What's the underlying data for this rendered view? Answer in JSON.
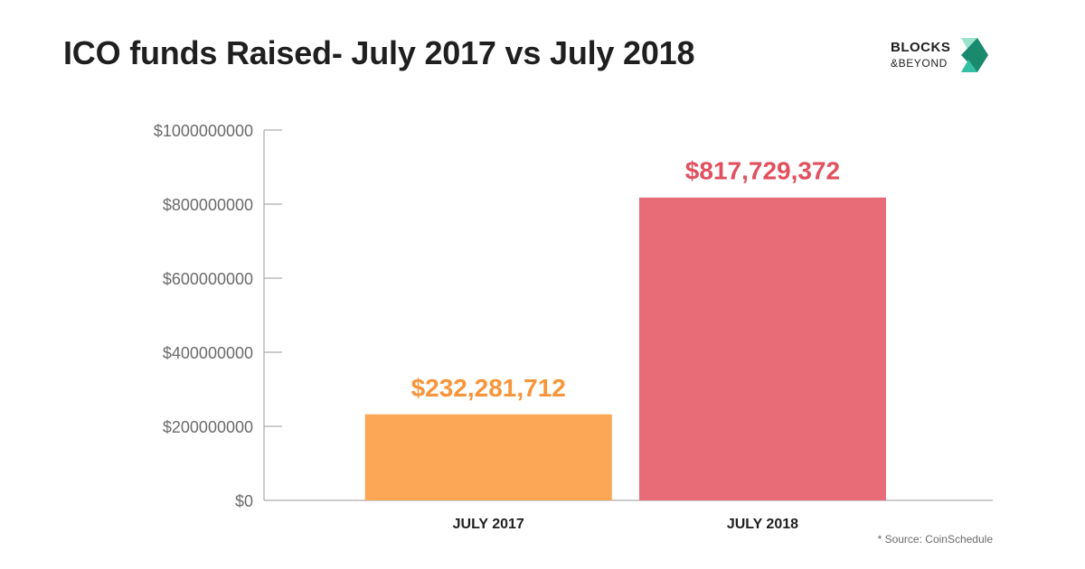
{
  "title": "ICO funds Raised- July 2017 vs July 2018",
  "logo": {
    "line1": "BLOCKS",
    "line2": "&BEYOND",
    "colors": [
      "#1a8a6e",
      "#35c0a4",
      "#9be3cc"
    ]
  },
  "source": "* Source:  CoinSchedule",
  "chart_data": {
    "type": "bar",
    "title": "ICO funds Raised- July 2017 vs July 2018",
    "xlabel": "",
    "ylabel": "",
    "categories": [
      "JULY 2017",
      "JULY 2018"
    ],
    "values": [
      232281712,
      817729372
    ],
    "value_labels": [
      "$232,281,712",
      "$817,729,372"
    ],
    "colors": [
      "#fba755",
      "#e76c78"
    ],
    "ylim": [
      0,
      1000000000
    ],
    "yticks": [
      0,
      200000000,
      400000000,
      600000000,
      800000000,
      1000000000
    ],
    "ytick_labels": [
      "$0",
      "$200000000",
      "$400000000",
      "$600000000",
      "$800000000",
      "$1000000000"
    ],
    "grid": false,
    "legend": "none"
  }
}
